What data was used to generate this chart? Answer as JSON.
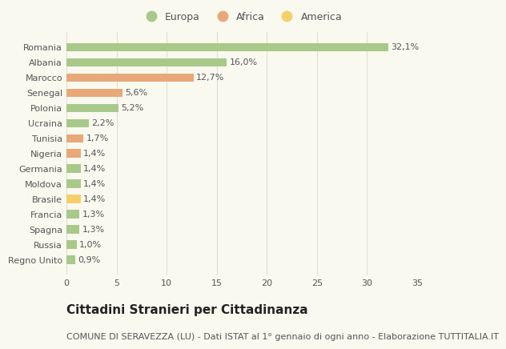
{
  "categories": [
    "Regno Unito",
    "Russia",
    "Spagna",
    "Francia",
    "Brasile",
    "Moldova",
    "Germania",
    "Nigeria",
    "Tunisia",
    "Ucraina",
    "Polonia",
    "Senegal",
    "Marocco",
    "Albania",
    "Romania"
  ],
  "values": [
    0.9,
    1.0,
    1.3,
    1.3,
    1.4,
    1.4,
    1.4,
    1.4,
    1.7,
    2.2,
    5.2,
    5.6,
    12.7,
    16.0,
    32.1
  ],
  "labels": [
    "0,9%",
    "1,0%",
    "1,3%",
    "1,3%",
    "1,4%",
    "1,4%",
    "1,4%",
    "1,4%",
    "1,7%",
    "2,2%",
    "5,2%",
    "5,6%",
    "12,7%",
    "16,0%",
    "32,1%"
  ],
  "continents": [
    "Europa",
    "Europa",
    "Europa",
    "Europa",
    "America",
    "Europa",
    "Europa",
    "Africa",
    "Africa",
    "Europa",
    "Europa",
    "Africa",
    "Africa",
    "Europa",
    "Europa"
  ],
  "colors": {
    "Europa": "#a8c98a",
    "Africa": "#e8a878",
    "America": "#f5d06a"
  },
  "xlim": [
    0,
    35
  ],
  "xticks": [
    0,
    5,
    10,
    15,
    20,
    25,
    30,
    35
  ],
  "title": "Cittadini Stranieri per Cittadinanza",
  "subtitle": "COMUNE DI SERAVEZZA (LU) - Dati ISTAT al 1° gennaio di ogni anno - Elaborazione TUTTITALIA.IT",
  "background_color": "#f9f9f0",
  "grid_color": "#e0e0d0",
  "bar_height": 0.55,
  "title_fontsize": 11,
  "subtitle_fontsize": 8,
  "label_fontsize": 8,
  "tick_fontsize": 8,
  "legend_fontsize": 9,
  "text_color": "#555555",
  "title_color": "#222222"
}
